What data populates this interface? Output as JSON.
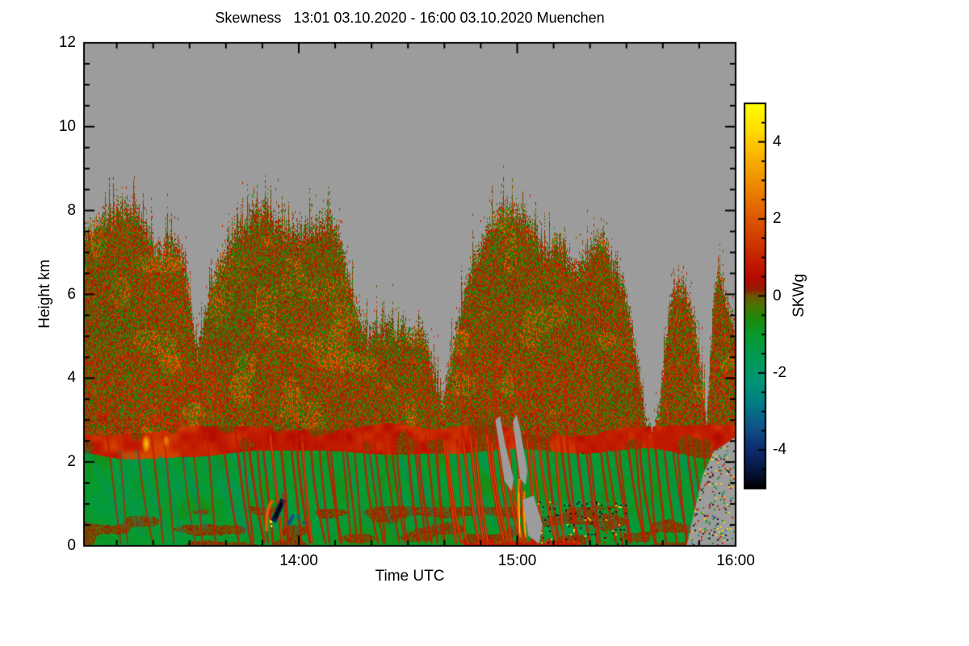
{
  "chart_data": {
    "type": "heatmap",
    "title": "Skewness   13:01 03.10.2020 - 16:00 03.10.2020 Muenchen",
    "xlabel": "Time UTC",
    "ylabel": "Height km",
    "station": "Muenchen",
    "time_start": "13:01 03.10.2020",
    "time_end": "16:00 03.10.2020",
    "x_axis": {
      "range_minutes": [
        0,
        179
      ],
      "start_label": "13:01",
      "major_ticks": [
        {
          "minute": 59,
          "label": "14:00"
        },
        {
          "minute": 119,
          "label": "15:00"
        },
        {
          "minute": 179,
          "label": "16:00"
        }
      ],
      "minor_tick_step_minutes": 10,
      "first_minor_minute": 9
    },
    "y_axis": {
      "range_km": [
        0,
        12
      ],
      "major_ticks": [
        0,
        2,
        4,
        6,
        8,
        10,
        12
      ],
      "minor_tick_step_km": 0.5
    },
    "colorbar": {
      "label": "SKWg",
      "range": [
        -5,
        5
      ],
      "major_ticks": [
        4,
        2,
        0,
        -2,
        -4
      ],
      "minor_tick_step": 0.5,
      "gradient_stops": [
        [
          5.0,
          "#ffff00"
        ],
        [
          4.3,
          "#ffdd00"
        ],
        [
          4.0,
          "#ffc800"
        ],
        [
          3.0,
          "#f09000"
        ],
        [
          2.0,
          "#dc5600"
        ],
        [
          1.3,
          "#cc3300"
        ],
        [
          0.8,
          "#c01800"
        ],
        [
          0.45,
          "#b40b00"
        ],
        [
          0.15,
          "#8f1e00"
        ],
        [
          0.0,
          "#6e5703"
        ],
        [
          -0.25,
          "#4a7403"
        ],
        [
          -0.6,
          "#1d8a0c"
        ],
        [
          -1.0,
          "#089a2c"
        ],
        [
          -1.6,
          "#009a52"
        ],
        [
          -2.2,
          "#009575"
        ],
        [
          -2.8,
          "#007d84"
        ],
        [
          -3.4,
          "#10538a"
        ],
        [
          -4.0,
          "#0e2a6e"
        ],
        [
          -4.5,
          "#071742"
        ],
        [
          -5.0,
          "#000000"
        ]
      ]
    },
    "no_data_color": "#9c9c9c",
    "cloud_top_km": [
      [
        0,
        7.75
      ],
      [
        4,
        7.95
      ],
      [
        8,
        8.1
      ],
      [
        12,
        8.35
      ],
      [
        15,
        8.0
      ],
      [
        18,
        7.45
      ],
      [
        21,
        7.2
      ],
      [
        24,
        7.55
      ],
      [
        27,
        7.25
      ],
      [
        29,
        6.1
      ],
      [
        31,
        4.85
      ],
      [
        33,
        5.7
      ],
      [
        35,
        6.5
      ],
      [
        38,
        7.15
      ],
      [
        41,
        7.55
      ],
      [
        44,
        7.85
      ],
      [
        47,
        8.1
      ],
      [
        50,
        8.3
      ],
      [
        52,
        8.0
      ],
      [
        55,
        7.75
      ],
      [
        58,
        7.7
      ],
      [
        61,
        7.75
      ],
      [
        64,
        7.9
      ],
      [
        67,
        8.0
      ],
      [
        70,
        7.55
      ],
      [
        72,
        6.85
      ],
      [
        74,
        6.15
      ],
      [
        76,
        5.5
      ],
      [
        78,
        5.25
      ],
      [
        80,
        5.45
      ],
      [
        82,
        5.3
      ],
      [
        84,
        5.5
      ],
      [
        86,
        5.35
      ],
      [
        88,
        5.55
      ],
      [
        90,
        5.2
      ],
      [
        92,
        5.45
      ],
      [
        94,
        5.05
      ],
      [
        96,
        4.4
      ],
      [
        98,
        3.55
      ],
      [
        100,
        4.3
      ],
      [
        102,
        5.3
      ],
      [
        104,
        6.1
      ],
      [
        106,
        6.7
      ],
      [
        108,
        7.2
      ],
      [
        110,
        7.6
      ],
      [
        112,
        7.95
      ],
      [
        114,
        8.2
      ],
      [
        116,
        8.35
      ],
      [
        118,
        8.2
      ],
      [
        120,
        8.05
      ],
      [
        122,
        7.85
      ],
      [
        124,
        7.6
      ],
      [
        126,
        7.35
      ],
      [
        128,
        7.2
      ],
      [
        130,
        7.45
      ],
      [
        132,
        7.3
      ],
      [
        134,
        7.0
      ],
      [
        136,
        6.85
      ],
      [
        138,
        7.15
      ],
      [
        140,
        7.45
      ],
      [
        142,
        7.5
      ],
      [
        144,
        7.25
      ],
      [
        146,
        6.8
      ],
      [
        148,
        6.4
      ],
      [
        150,
        5.6
      ],
      [
        152,
        4.6
      ],
      [
        154,
        3.3
      ],
      [
        156,
        2.7
      ],
      [
        158,
        3.6
      ],
      [
        160,
        5.2
      ],
      [
        162,
        6.35
      ],
      [
        164,
        6.45
      ],
      [
        166,
        6.1
      ],
      [
        168,
        5.3
      ],
      [
        170,
        4.1
      ],
      [
        171,
        3.2
      ],
      [
        172,
        4.8
      ],
      [
        173,
        6.2
      ],
      [
        174,
        6.85
      ],
      [
        176,
        6.3
      ],
      [
        178,
        5.6
      ],
      [
        179,
        5.2
      ]
    ],
    "boundary_layer": {
      "top_km": 2.2,
      "entrainment_band_top_km": 2.78
    },
    "gray_gaps": [
      [
        [
          113,
          3.0
        ],
        [
          115.5,
          1.55
        ],
        [
          117.5,
          1.3
        ],
        [
          118,
          1.6
        ],
        [
          115.5,
          2.5
        ],
        [
          114.3,
          3.1
        ]
      ],
      [
        [
          117.8,
          2.95
        ],
        [
          119.8,
          1.6
        ],
        [
          121.3,
          1.45
        ],
        [
          121.8,
          1.8
        ],
        [
          119.8,
          2.8
        ],
        [
          118.8,
          3.15
        ]
      ],
      [
        [
          120.5,
          1.1
        ],
        [
          122,
          0.25
        ],
        [
          125,
          0.05
        ],
        [
          126,
          0.5
        ],
        [
          123.5,
          1.2
        ]
      ],
      [
        [
          165.5,
          0
        ],
        [
          170,
          1.7
        ],
        [
          173,
          2.25
        ],
        [
          179,
          2.6
        ],
        [
          179,
          0
        ]
      ]
    ],
    "features": {
      "bright_positive_spot": {
        "t_min": 17,
        "h_km": 2.45
      },
      "secondary_glow": {
        "t_min": 22.5,
        "h_km": 2.52
      },
      "negative_skewness_streak": {
        "t_min": 53.3,
        "h_km": 0.85
      },
      "negative_blob_2": {
        "t_min": 56.8,
        "h_km": 0.62
      },
      "orange_arc": {
        "t_min": 51,
        "h_km": 0.75
      },
      "noise_speckle_region": {
        "t0": 122,
        "t1": 149,
        "h0": 0.02,
        "h1": 1.05
      },
      "bottom_red_strip": {
        "t0": 104,
        "t1": 136,
        "h_km": 0.15
      },
      "orange_filaments": [
        [
          119.5,
          1.6
        ],
        [
          121,
          1.3
        ]
      ]
    },
    "red_streaks": [
      [
        6,
        0.5
      ],
      [
        10,
        0.4
      ],
      [
        14,
        0.5
      ],
      [
        18,
        0.6
      ],
      [
        22,
        0.5
      ],
      [
        26,
        0.4
      ],
      [
        30,
        0.5
      ],
      [
        34,
        0.6
      ],
      [
        38,
        0.7
      ],
      [
        41,
        0.8
      ],
      [
        43,
        0.7
      ],
      [
        45,
        0.9
      ],
      [
        47,
        0.7
      ],
      [
        49,
        0.8
      ],
      [
        51.5,
        1.0
      ],
      [
        54,
        0.9
      ],
      [
        56,
        0.8
      ],
      [
        58,
        0.9
      ],
      [
        60,
        1.0
      ],
      [
        62,
        0.8
      ],
      [
        64,
        0.7
      ],
      [
        66,
        0.8
      ],
      [
        68,
        0.7
      ],
      [
        70,
        0.6
      ],
      [
        72,
        0.7
      ],
      [
        74,
        0.6
      ],
      [
        76,
        0.7
      ],
      [
        78,
        0.6
      ],
      [
        80,
        0.7
      ],
      [
        82,
        0.6
      ],
      [
        84,
        0.7
      ],
      [
        86,
        0.6
      ],
      [
        88,
        0.8
      ],
      [
        90,
        0.7
      ],
      [
        92,
        0.8
      ],
      [
        94,
        0.7
      ],
      [
        96,
        0.9
      ],
      [
        98,
        1.0
      ],
      [
        100,
        1.1
      ],
      [
        102,
        1.0
      ],
      [
        104,
        1.1
      ],
      [
        106,
        1.2
      ],
      [
        108,
        1.1
      ],
      [
        110,
        1.2
      ],
      [
        112,
        1.1
      ],
      [
        113.5,
        1.2
      ],
      [
        115,
        1.0
      ],
      [
        117,
        1.1
      ],
      [
        119,
        1.2
      ],
      [
        121,
        1.1
      ],
      [
        123,
        1.0
      ],
      [
        125,
        1.1
      ],
      [
        127,
        0.9
      ],
      [
        129,
        1.0
      ],
      [
        131,
        0.9
      ],
      [
        133,
        0.8
      ],
      [
        135,
        0.9
      ],
      [
        137,
        0.8
      ],
      [
        139,
        0.7
      ],
      [
        141,
        0.8
      ],
      [
        143,
        0.7
      ],
      [
        145,
        0.8
      ],
      [
        147,
        0.7
      ],
      [
        149,
        0.8
      ],
      [
        151,
        0.7
      ],
      [
        153,
        0.8
      ],
      [
        155,
        0.7
      ],
      [
        157,
        0.8
      ],
      [
        159,
        0.7
      ],
      [
        161,
        0.6
      ],
      [
        163,
        0.7
      ],
      [
        165,
        0.8
      ],
      [
        167,
        0.7
      ],
      [
        169,
        0.6
      ]
    ],
    "seed": 12
  }
}
